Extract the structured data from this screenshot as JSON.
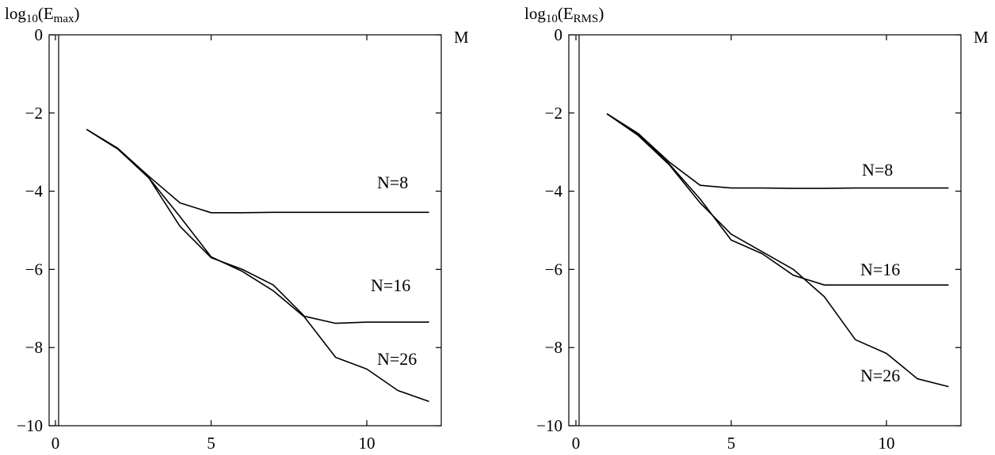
{
  "chart_data": [
    {
      "type": "line",
      "ylabel": {
        "base": "log",
        "sub": "10",
        "open": "(E",
        "sub2": "max",
        "close": ")"
      },
      "xlabel": "M",
      "xlim": [
        0,
        12
      ],
      "ylim": [
        -10,
        0
      ],
      "xticks": [
        0,
        5,
        10
      ],
      "yticks": [
        0,
        -2,
        -4,
        -6,
        -8,
        -10
      ],
      "ytick_labels": [
        "0",
        "−2",
        "−4",
        "−6",
        "−8",
        "−10"
      ],
      "series": [
        {
          "name": "N=8",
          "x": [
            1,
            2,
            3,
            4,
            5,
            6,
            7,
            8,
            9,
            10,
            11,
            12
          ],
          "y": [
            -2.42,
            -2.9,
            -3.62,
            -4.3,
            -4.55,
            -4.55,
            -4.54,
            -4.54,
            -4.54,
            -4.54,
            -4.54,
            -4.54
          ]
        },
        {
          "name": "N=16",
          "x": [
            1,
            2,
            3,
            4,
            5,
            6,
            7,
            8,
            9,
            10,
            11,
            12
          ],
          "y": [
            -2.42,
            -2.92,
            -3.66,
            -4.9,
            -5.7,
            -6.0,
            -6.4,
            -7.2,
            -7.38,
            -7.35,
            -7.35,
            -7.35
          ]
        },
        {
          "name": "N=26",
          "x": [
            1,
            2,
            3,
            4,
            5,
            6,
            7,
            8,
            9,
            10,
            11,
            12
          ],
          "y": [
            -2.42,
            -2.92,
            -3.66,
            -4.65,
            -5.68,
            -6.05,
            -6.55,
            -7.22,
            -8.25,
            -8.55,
            -9.1,
            -9.38
          ]
        }
      ]
    },
    {
      "type": "line",
      "ylabel": {
        "base": "log",
        "sub": "10",
        "open": "(E",
        "sub2": "RMS",
        "close": ")"
      },
      "xlabel": "M",
      "xlim": [
        0,
        12
      ],
      "ylim": [
        -10,
        0
      ],
      "xticks": [
        0,
        5,
        10
      ],
      "yticks": [
        0,
        -2,
        -4,
        -6,
        -8,
        -10
      ],
      "ytick_labels": [
        "0",
        "−2",
        "−4",
        "−6",
        "−8",
        "−10"
      ],
      "series": [
        {
          "name": "N=8",
          "x": [
            1,
            2,
            3,
            4,
            5,
            6,
            7,
            8,
            9,
            10,
            11,
            12
          ],
          "y": [
            -2.02,
            -2.52,
            -3.25,
            -3.85,
            -3.92,
            -3.92,
            -3.93,
            -3.93,
            -3.92,
            -3.92,
            -3.92,
            -3.92
          ]
        },
        {
          "name": "N=16",
          "x": [
            1,
            2,
            3,
            4,
            5,
            6,
            7,
            8,
            9,
            10,
            11,
            12
          ],
          "y": [
            -2.02,
            -2.55,
            -3.3,
            -4.2,
            -5.25,
            -5.6,
            -6.15,
            -6.4,
            -6.4,
            -6.4,
            -6.4,
            -6.4
          ]
        },
        {
          "name": "N=26",
          "x": [
            1,
            2,
            3,
            4,
            5,
            6,
            7,
            8,
            9,
            10,
            11,
            12
          ],
          "y": [
            -2.02,
            -2.57,
            -3.32,
            -4.3,
            -5.1,
            -5.55,
            -6.0,
            -6.7,
            -7.8,
            -8.15,
            -8.8,
            -9.0
          ]
        }
      ]
    }
  ]
}
